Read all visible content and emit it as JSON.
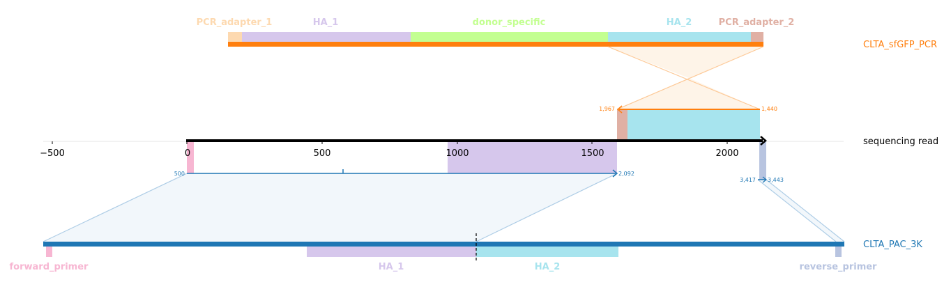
{
  "top": {
    "name": "CLTA_sfGFP_PCR",
    "color": "#ff7f0e",
    "features": [
      {
        "label": "PCR_adapter_1",
        "color": "#fdd9b0"
      },
      {
        "label": "HA_1",
        "color": "#d6c7ec"
      },
      {
        "label": "donor_specific",
        "color": "#c3ff91"
      },
      {
        "label": "HA_2",
        "color": "#a7e4ee"
      },
      {
        "label": "PCR_adapter_2",
        "color": "#e0b0a4"
      }
    ],
    "alignment": {
      "start_label": "1,967",
      "end_label": "1,440"
    }
  },
  "read": {
    "name": "sequencing read",
    "ticks": [
      "−500",
      "0",
      "500",
      "1000",
      "1500",
      "2000"
    ]
  },
  "bottom": {
    "name": "CLTA_PAC_3K",
    "color": "#1f77b4",
    "features": [
      {
        "label": "forward_primer",
        "color": "#f7b6d2"
      },
      {
        "label": "HA_1",
        "color": "#d6c7ec"
      },
      {
        "label": "HA_2",
        "color": "#a7e4ee"
      },
      {
        "label": "reverse_primer",
        "color": "#b8c4e0"
      }
    ],
    "alignment1": {
      "start_label": "500",
      "end_label": "2,092"
    },
    "alignment2": {
      "start_label": "3,417",
      "end_label": "3,443"
    }
  }
}
